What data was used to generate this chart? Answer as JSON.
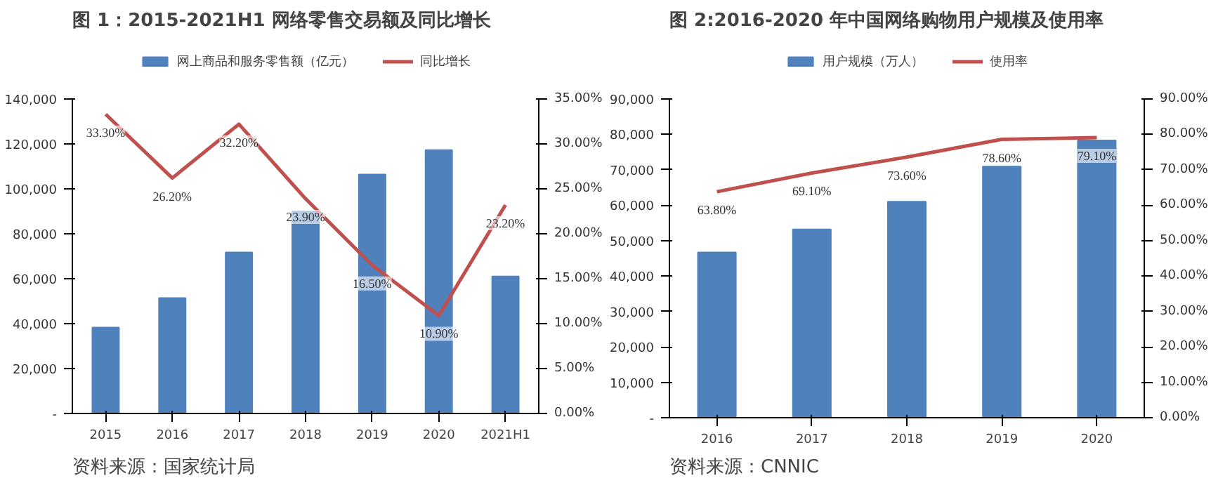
{
  "chart_data": [
    {
      "type": "bar",
      "title": "图 1：2015-2021H1 网络零售交易额及同比增长",
      "categories": [
        "2015",
        "2016",
        "2017",
        "2018",
        "2019",
        "2020",
        "2021H1"
      ],
      "series": [
        {
          "name": "网上商品和服务零售额（亿元）",
          "color": "#4f81bd",
          "values": [
            38300,
            51400,
            71700,
            89900,
            106400,
            117300,
            61000
          ]
        },
        {
          "name": "同比增长",
          "type": "line",
          "axis": "y2",
          "color": "#c0504d",
          "values": [
            33.3,
            26.2,
            32.2,
            23.9,
            16.5,
            10.9,
            23.2
          ],
          "value_labels": [
            "33.30%",
            "26.20%",
            "32.20%",
            "23.90%",
            "16.50%",
            "10.90%",
            "23.20%"
          ]
        }
      ],
      "ylim": [
        0,
        140000
      ],
      "yticks": [
        {
          "value": 0,
          "label": "-"
        },
        {
          "value": 20000,
          "label": "20,000"
        },
        {
          "value": 40000,
          "label": "40,000"
        },
        {
          "value": 60000,
          "label": "60,000"
        },
        {
          "value": 80000,
          "label": "80,000"
        },
        {
          "value": 100000,
          "label": "100,000"
        },
        {
          "value": 120000,
          "label": "120,000"
        },
        {
          "value": 140000,
          "label": "140,000"
        }
      ],
      "y2lim": [
        0,
        35
      ],
      "y2ticks": [
        {
          "value": 0,
          "label": "0.00%"
        },
        {
          "value": 5,
          "label": "5.00%"
        },
        {
          "value": 10,
          "label": "10.00%"
        },
        {
          "value": 15,
          "label": "15.00%"
        },
        {
          "value": 20,
          "label": "20.00%"
        },
        {
          "value": 25,
          "label": "25.00%"
        },
        {
          "value": 30,
          "label": "30.00%"
        },
        {
          "value": 35,
          "label": "35.00%"
        }
      ],
      "legend": "top",
      "annotations": [
        "资料来源：国家统计局"
      ]
    },
    {
      "type": "bar",
      "title": "图 2:2016-2020 年中国网络购物用户规模及使用率",
      "categories": [
        "2016",
        "2017",
        "2018",
        "2019",
        "2020"
      ],
      "series": [
        {
          "name": "用户规模（万人）",
          "color": "#4f81bd",
          "values": [
            46700,
            53200,
            61000,
            70900,
            78300
          ]
        },
        {
          "name": "使用率",
          "type": "line",
          "axis": "y2",
          "color": "#c0504d",
          "values": [
            63.8,
            69.1,
            73.6,
            78.6,
            79.1
          ],
          "value_labels": [
            "63.80%",
            "69.10%",
            "73.60%",
            "78.60%",
            "79.10%"
          ]
        }
      ],
      "ylim": [
        0,
        90000
      ],
      "yticks": [
        {
          "value": 0,
          "label": "-"
        },
        {
          "value": 10000,
          "label": "10,000"
        },
        {
          "value": 20000,
          "label": "20,000"
        },
        {
          "value": 30000,
          "label": "30,000"
        },
        {
          "value": 40000,
          "label": "40,000"
        },
        {
          "value": 50000,
          "label": "50,000"
        },
        {
          "value": 60000,
          "label": "60,000"
        },
        {
          "value": 70000,
          "label": "70,000"
        },
        {
          "value": 80000,
          "label": "80,000"
        },
        {
          "value": 90000,
          "label": "90,000"
        }
      ],
      "y2lim": [
        0,
        90
      ],
      "y2ticks": [
        {
          "value": 0,
          "label": "0.00%"
        },
        {
          "value": 10,
          "label": "10.00%"
        },
        {
          "value": 20,
          "label": "20.00%"
        },
        {
          "value": 30,
          "label": "30.00%"
        },
        {
          "value": 40,
          "label": "40.00%"
        },
        {
          "value": 50,
          "label": "50.00%"
        },
        {
          "value": 60,
          "label": "60.00%"
        },
        {
          "value": 70,
          "label": "70.00%"
        },
        {
          "value": 80,
          "label": "80.00%"
        },
        {
          "value": 90,
          "label": "90.00%"
        }
      ],
      "legend": "top",
      "annotations": [
        "资料来源：CNNIC"
      ]
    }
  ]
}
